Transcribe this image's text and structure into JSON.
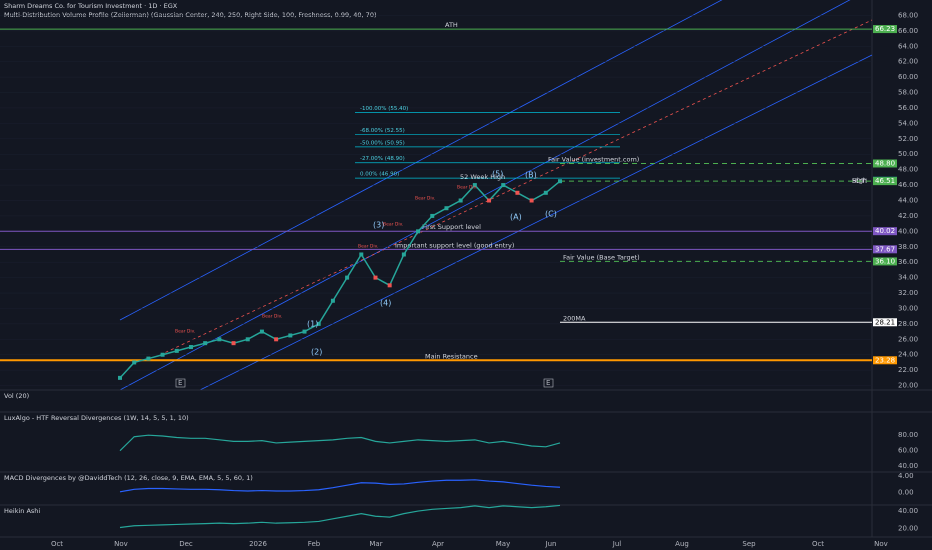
{
  "header": {
    "title": "Sharm Dreams Co. for Tourism Investment · 1D · EGX",
    "subtitle": "Multi-Distribution Volume Profile (Zeiierman) (Gaussian Center, 240, 250, Right Side, 100, Freshness, 0.99, 40, 70)"
  },
  "chart_data": {
    "type": "line",
    "ylim": [
      18,
      70
    ],
    "yticks": [
      {
        "value": 20,
        "label": "20.00"
      },
      {
        "value": 22,
        "label": "22.00"
      },
      {
        "value": 24,
        "label": "24.00"
      },
      {
        "value": 26,
        "label": "26.00"
      },
      {
        "value": 28,
        "label": "28.00"
      },
      {
        "value": 30,
        "label": "30.00"
      },
      {
        "value": 32,
        "label": "32.00"
      },
      {
        "value": 34,
        "label": "34.00"
      },
      {
        "value": 36,
        "label": "36.00"
      },
      {
        "value": 38,
        "label": "38.00"
      },
      {
        "value": 40,
        "label": "40.00"
      },
      {
        "value": 42,
        "label": "42.00"
      },
      {
        "value": 44,
        "label": "44.00"
      },
      {
        "value": 46,
        "label": "46.00"
      },
      {
        "value": 48,
        "label": "48.00"
      },
      {
        "value": 50,
        "label": "50.00"
      },
      {
        "value": 52,
        "label": "52.00"
      },
      {
        "value": 54,
        "label": "54.00"
      },
      {
        "value": 56,
        "label": "56.00"
      },
      {
        "value": 58,
        "label": "58.00"
      },
      {
        "value": 60,
        "label": "60.00"
      },
      {
        "value": 62,
        "label": "62.00"
      },
      {
        "value": 64,
        "label": "64.00"
      },
      {
        "value": 66,
        "label": "66.00"
      },
      {
        "value": 68,
        "label": "68.00"
      }
    ],
    "months": [
      "Oct",
      "Nov",
      "Dec",
      "2026",
      "Feb",
      "Mar",
      "Apr",
      "May",
      "Jun",
      "Jul",
      "Aug",
      "Sep",
      "Oct",
      "Nov"
    ],
    "series": [
      {
        "name": "SDTI",
        "color": "#26a69a",
        "values": [
          21,
          23,
          23.5,
          24,
          24.5,
          25,
          25.5,
          26,
          25.5,
          26,
          27,
          26,
          26.5,
          27,
          28,
          31,
          34,
          37,
          34,
          33,
          37,
          40,
          42,
          43,
          44,
          46,
          44,
          46,
          45,
          44,
          45,
          46.5
        ]
      }
    ],
    "levels": [
      {
        "label": "ATH",
        "value": 66.23,
        "value_label": "66.23",
        "color": "#4caf50",
        "style": "solid"
      },
      {
        "label": "Fair Value (investment.com)",
        "value": 48.8,
        "value_label": "48.80",
        "color": "#4caf50",
        "style": "dashed"
      },
      {
        "label": "High",
        "value": 46.58,
        "value_label": "46.58",
        "color": "#131722",
        "style": "none"
      },
      {
        "label": "SDTI",
        "value": 46.56,
        "value_label": "46.56",
        "color": "#26a69a",
        "style": "none"
      },
      {
        "label": "52 Week High",
        "value": 46.51,
        "value_label": "46.51",
        "color": "#4caf50",
        "style": "dashed"
      },
      {
        "label": "First Support level",
        "value": 40.02,
        "value_label": "40.02",
        "color": "#7e57c2",
        "style": "solid"
      },
      {
        "label": "Important support level (good entry)",
        "value": 37.67,
        "value_label": "37.67",
        "color": "#7e57c2",
        "style": "solid"
      },
      {
        "label": "Fair Value (Base Target)",
        "value": 36.1,
        "value_label": "36.10",
        "color": "#4caf50",
        "style": "dashed"
      },
      {
        "label": "200MA",
        "value": 28.21,
        "value_label": "28.21",
        "color": "#ffffff",
        "style": "solid"
      },
      {
        "label": "Main Resistance",
        "value": 23.28,
        "value_label": "23.28",
        "color": "#ff9800",
        "style": "solid"
      }
    ],
    "fib": [
      {
        "label": "-100.00% (55.40)",
        "value": 55.4
      },
      {
        "label": "-68.00% (52.55)",
        "value": 52.55
      },
      {
        "label": "-50.00% (50.95)",
        "value": 50.95
      },
      {
        "label": "-27.00% (48.90)",
        "value": 48.9
      },
      {
        "label": "0.00% (46.90)",
        "value": 46.9
      }
    ],
    "waves": [
      "(1)",
      "(2)",
      "(3)",
      "(4)",
      "(5)",
      "(A)",
      "(B)",
      "(C)"
    ],
    "divergences": [
      "Bear Div.",
      "Bear Div.",
      "Bear Div.",
      "Bear Div.",
      "Bear Div.",
      "Bear Div."
    ],
    "events": [
      "E",
      "E"
    ],
    "panes": [
      {
        "title": "Vol (20)"
      },
      {
        "title": "LuxAlgo - HTF Reversal Divergences (1W, 14, 5, 5, 1, 10)",
        "ylim": [
          35,
          110
        ],
        "yticks": [
          {
            "value": 80,
            "label": "80.00"
          },
          {
            "value": 60,
            "label": "60.00"
          },
          {
            "value": 40,
            "label": "40.00"
          }
        ],
        "color": "#26a69a",
        "values": [
          60,
          78,
          80,
          79,
          77,
          76,
          76,
          74,
          72,
          72,
          73,
          70,
          71,
          72,
          73,
          74,
          76,
          77,
          72,
          70,
          72,
          74,
          73,
          72,
          73,
          74,
          70,
          72,
          69,
          66,
          65,
          70
        ]
      },
      {
        "title": "MACD Divergences by @DaviddTech (12, 26, close, 9, EMA, EMA, 5, 5, 60, 1)",
        "ylim": [
          -3,
          5
        ],
        "yticks": [
          {
            "value": 4,
            "label": "4.00"
          },
          {
            "value": 0,
            "label": "0.00"
          }
        ],
        "color": "#2962ff",
        "values": [
          0.2,
          0.8,
          1,
          1,
          0.9,
          0.8,
          0.8,
          0.7,
          0.5,
          0.4,
          0.5,
          0.4,
          0.4,
          0.5,
          0.7,
          1.2,
          1.8,
          2.4,
          2.3,
          2,
          2.1,
          2.5,
          2.8,
          3,
          3,
          3.1,
          2.8,
          2.6,
          2.2,
          1.8,
          1.5,
          1.3
        ]
      },
      {
        "title": "Heikin Ashi",
        "ylim": [
          10,
          47
        ],
        "yticks": [
          {
            "value": 40,
            "label": "40.00"
          },
          {
            "value": 20,
            "label": "20.00"
          }
        ]
      }
    ]
  }
}
